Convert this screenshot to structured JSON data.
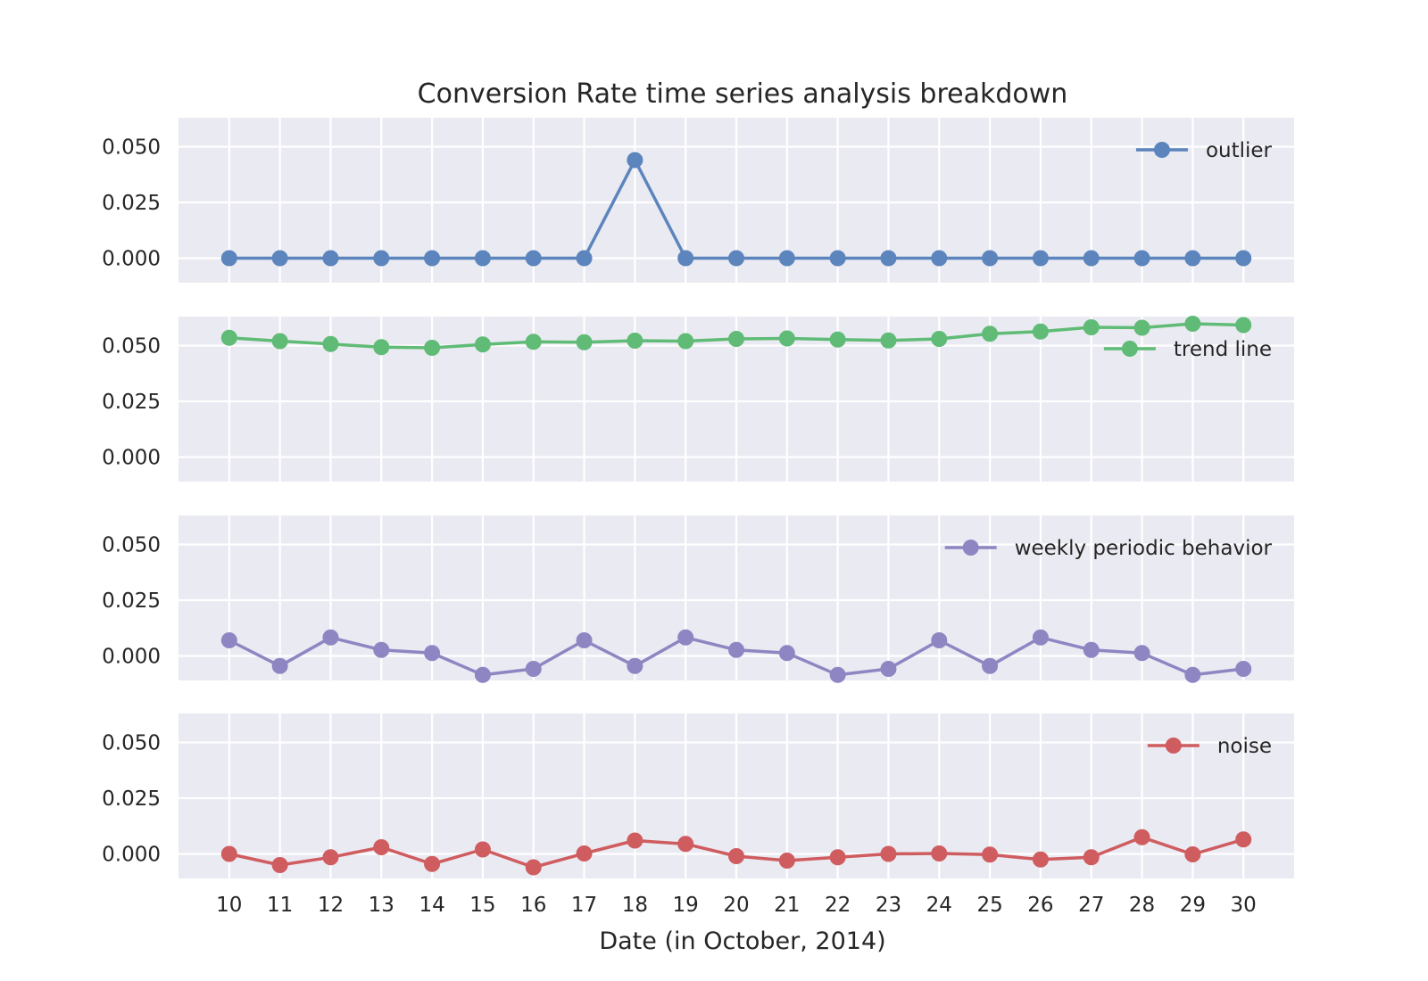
{
  "chart_data": {
    "type": "line",
    "title": "Conversion Rate time series analysis breakdown",
    "xlabel": "Date (in October, 2014)",
    "x": [
      10,
      11,
      12,
      13,
      14,
      15,
      16,
      17,
      18,
      19,
      20,
      21,
      22,
      23,
      24,
      25,
      26,
      27,
      28,
      29,
      30
    ],
    "x_tick_labels": [
      "10",
      "11",
      "12",
      "13",
      "14",
      "15",
      "16",
      "17",
      "18",
      "19",
      "20",
      "21",
      "22",
      "23",
      "24",
      "25",
      "26",
      "27",
      "28",
      "29",
      "30"
    ],
    "xlim": [
      9,
      31
    ],
    "ylim": [
      -0.011,
      0.063
    ],
    "y_ticks": [
      0.0,
      0.025,
      0.05
    ],
    "y_tick_labels": [
      "0.000",
      "0.025",
      "0.050"
    ],
    "grid": true,
    "subplots": [
      {
        "legend": "outlier",
        "legend_position": "top-right",
        "color": "#5b85bc",
        "values": [
          0,
          0,
          0,
          0,
          0,
          0,
          0,
          0,
          0.044,
          0,
          0,
          0,
          0,
          0,
          0,
          0,
          0,
          0,
          0,
          0,
          0
        ]
      },
      {
        "legend": "trend line",
        "legend_position": "right",
        "color": "#5fbb75",
        "values": [
          0.0535,
          0.052,
          0.0507,
          0.0493,
          0.049,
          0.0505,
          0.0517,
          0.0515,
          0.0522,
          0.052,
          0.053,
          0.0532,
          0.0527,
          0.0523,
          0.053,
          0.0553,
          0.0563,
          0.0582,
          0.058,
          0.0598,
          0.0592
        ]
      },
      {
        "legend": "weekly periodic behavior",
        "legend_position": "top-right",
        "color": "#8e86c2",
        "values": [
          0.007,
          -0.0045,
          0.0083,
          0.0027,
          0.0013,
          -0.0085,
          -0.0058,
          0.007,
          -0.0045,
          0.0083,
          0.0027,
          0.0013,
          -0.0085,
          -0.0058,
          0.007,
          -0.0045,
          0.0083,
          0.0027,
          0.0013,
          -0.0085,
          -0.0058
        ]
      },
      {
        "legend": "noise",
        "legend_position": "top-right",
        "color": "#cf5c5f",
        "values": [
          0.0,
          -0.005,
          -0.0015,
          0.003,
          -0.0045,
          0.002,
          -0.006,
          0.0002,
          0.006,
          0.0045,
          -0.001,
          -0.003,
          -0.0015,
          0.0,
          0.0002,
          -0.0003,
          -0.0025,
          -0.0015,
          0.0075,
          -0.0002,
          0.0065
        ]
      }
    ]
  }
}
